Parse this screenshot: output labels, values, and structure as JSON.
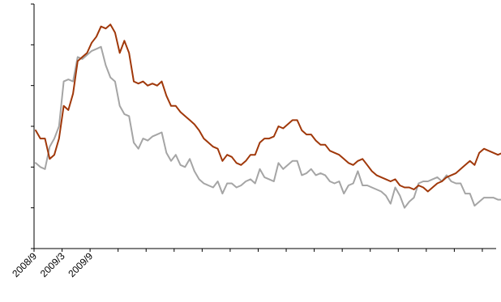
{
  "chart_data": {
    "type": "line",
    "title": "",
    "xlabel": "",
    "ylabel": "",
    "x_start": "2008/9",
    "x_tick_labels": [
      "2008/9",
      "2009/3",
      "2009/9"
    ],
    "y_tick_count": 6,
    "ylim": [
      0,
      6
    ],
    "grid": false,
    "legend": "none",
    "series": [
      {
        "color": "#a0380a",
        "end_marker": "diamond",
        "values": [
          2.9,
          2.7,
          2.7,
          2.2,
          2.3,
          2.7,
          3.5,
          3.4,
          3.8,
          4.6,
          4.7,
          4.8,
          5.05,
          5.2,
          5.45,
          5.4,
          5.5,
          5.3,
          4.8,
          5.1,
          4.8,
          4.1,
          4.05,
          4.1,
          4.0,
          4.05,
          4.0,
          4.1,
          3.75,
          3.5,
          3.5,
          3.35,
          3.25,
          3.15,
          3.05,
          2.9,
          2.7,
          2.6,
          2.5,
          2.45,
          2.15,
          2.3,
          2.25,
          2.1,
          2.05,
          2.15,
          2.3,
          2.3,
          2.6,
          2.7,
          2.7,
          2.75,
          3.0,
          2.95,
          3.05,
          3.15,
          3.15,
          2.9,
          2.8,
          2.8,
          2.65,
          2.55,
          2.55,
          2.4,
          2.35,
          2.3,
          2.2,
          2.1,
          2.05,
          2.15,
          2.2,
          2.05,
          1.9,
          1.8,
          1.75,
          1.7,
          1.65,
          1.7,
          1.55,
          1.5,
          1.5,
          1.45,
          1.55,
          1.5,
          1.4,
          1.5,
          1.6,
          1.65,
          1.75,
          1.8,
          1.85,
          1.95,
          2.05,
          2.15,
          2.05,
          2.35,
          2.45,
          2.4,
          2.35,
          2.3,
          2.35,
          2.35,
          2.35,
          2.4,
          2.3,
          2.3,
          2.3,
          2.1,
          2.1
        ]
      },
      {
        "color": "#a5a5a5",
        "end_marker": "diamond",
        "values": [
          2.1,
          2.0,
          1.95,
          2.5,
          2.7,
          3.0,
          4.1,
          4.15,
          4.1,
          4.7,
          4.65,
          4.75,
          4.85,
          4.9,
          4.95,
          4.5,
          4.2,
          4.1,
          3.5,
          3.3,
          3.25,
          2.6,
          2.45,
          2.7,
          2.65,
          2.75,
          2.8,
          2.85,
          2.35,
          2.15,
          2.3,
          2.05,
          2.0,
          2.2,
          1.9,
          1.7,
          1.6,
          1.55,
          1.5,
          1.65,
          1.35,
          1.6,
          1.6,
          1.5,
          1.55,
          1.65,
          1.7,
          1.6,
          1.95,
          1.75,
          1.7,
          1.65,
          2.1,
          1.95,
          2.05,
          2.15,
          2.15,
          1.8,
          1.85,
          1.95,
          1.8,
          1.85,
          1.8,
          1.65,
          1.6,
          1.65,
          1.35,
          1.55,
          1.6,
          1.9,
          1.55,
          1.55,
          1.5,
          1.45,
          1.4,
          1.3,
          1.1,
          1.5,
          1.3,
          1.0,
          1.15,
          1.25,
          1.6,
          1.65,
          1.65,
          1.7,
          1.75,
          1.65,
          1.8,
          1.65,
          1.6,
          1.6,
          1.35,
          1.35,
          1.05,
          1.15,
          1.25,
          1.25,
          1.25,
          1.2,
          1.2,
          1.15,
          1.05,
          1.05,
          1.1,
          1.05,
          1.05,
          1.0,
          1.05
        ]
      }
    ]
  }
}
